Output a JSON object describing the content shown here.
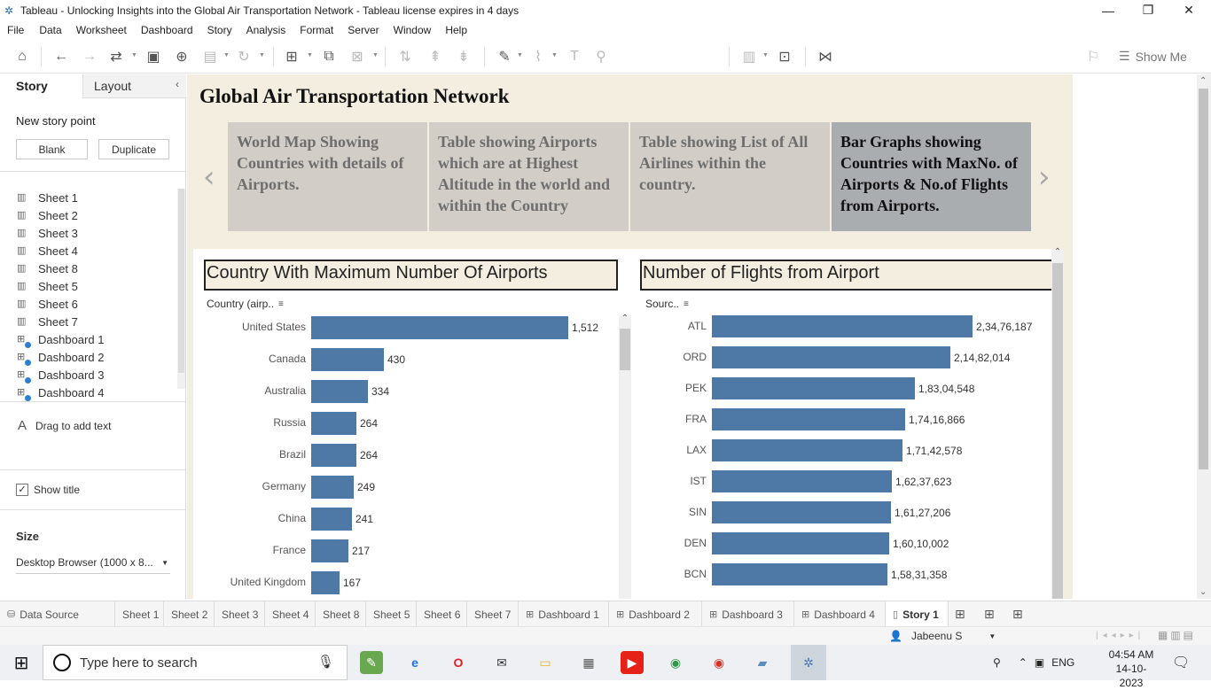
{
  "window": {
    "title": "Tableau - Unlocking Insights into the Global Air Transportation Network - Tableau license expires in 4 days"
  },
  "menu": [
    "File",
    "Data",
    "Worksheet",
    "Dashboard",
    "Story",
    "Analysis",
    "Format",
    "Server",
    "Window",
    "Help"
  ],
  "toolbar": {
    "show_me": "Show Me"
  },
  "left_pane": {
    "tabs": {
      "story": "Story",
      "layout": "Layout"
    },
    "new_story_point": "New story point",
    "blank": "Blank",
    "duplicate": "Duplicate",
    "sheets": [
      {
        "label": "Sheet 1",
        "kind": "sheet"
      },
      {
        "label": "Sheet 2",
        "kind": "sheet"
      },
      {
        "label": "Sheet 3",
        "kind": "sheet"
      },
      {
        "label": "Sheet 4",
        "kind": "sheet"
      },
      {
        "label": "Sheet 8",
        "kind": "sheet"
      },
      {
        "label": "Sheet 5",
        "kind": "sheet"
      },
      {
        "label": "Sheet 6",
        "kind": "sheet"
      },
      {
        "label": "Sheet 7",
        "kind": "sheet"
      },
      {
        "label": "Dashboard 1",
        "kind": "dashboard"
      },
      {
        "label": "Dashboard 2",
        "kind": "dashboard"
      },
      {
        "label": "Dashboard 3",
        "kind": "dashboard"
      },
      {
        "label": "Dashboard 4",
        "kind": "dashboard"
      }
    ],
    "drag_text": "Drag to add text",
    "show_title": "Show title",
    "size_label": "Size",
    "size_value": "Desktop Browser (1000 x 8..."
  },
  "story": {
    "title": "Global Air Transportation Network",
    "points": [
      {
        "text": "World Map Showing Countries with details of Airports.",
        "active": false
      },
      {
        "text": "Table showing Airports which are at Highest Altitude in the world and within the Country",
        "active": false
      },
      {
        "text": "Table showing List of All Airlines within the country.",
        "active": false
      },
      {
        "text": "Bar Graphs showing Countries with MaxNo. of Airports & No.of Flights from Airports.",
        "active": true
      }
    ]
  },
  "chart_data": [
    {
      "type": "bar",
      "orientation": "horizontal",
      "title": "Country With Maximum Number Of Airports",
      "header": "Country (airp..",
      "categories": [
        "United States",
        "Canada",
        "Australia",
        "Russia",
        "Brazil",
        "Germany",
        "China",
        "France",
        "United Kingdom"
      ],
      "values": [
        1512,
        430,
        334,
        264,
        264,
        249,
        241,
        217,
        167
      ],
      "value_labels": [
        "1,512",
        "430",
        "334",
        "264",
        "264",
        "249",
        "241",
        "217",
        "167"
      ],
      "bar_color": "#4e79a7"
    },
    {
      "type": "bar",
      "orientation": "horizontal",
      "title": "Number of Flights from Airport",
      "header": "Sourc..",
      "categories": [
        "ATL",
        "ORD",
        "PEK",
        "FRA",
        "LAX",
        "IST",
        "SIN",
        "DEN",
        "BCN"
      ],
      "values": [
        23476187,
        21482014,
        18304548,
        17416866,
        17142578,
        16237623,
        16127206,
        16010002,
        15831358
      ],
      "value_labels": [
        "2,34,76,187",
        "2,14,82,014",
        "1,83,04,548",
        "1,74,16,866",
        "1,71,42,578",
        "1,62,37,623",
        "1,61,27,206",
        "1,60,10,002",
        "1,58,31,358"
      ],
      "bar_color": "#4e79a7"
    }
  ],
  "bottom_tabs": [
    {
      "label": "Data Source",
      "icon": "database-icon"
    },
    {
      "label": "Sheet 1"
    },
    {
      "label": "Sheet 2"
    },
    {
      "label": "Sheet 3"
    },
    {
      "label": "Sheet 4"
    },
    {
      "label": "Sheet 8"
    },
    {
      "label": "Sheet 5"
    },
    {
      "label": "Sheet 6"
    },
    {
      "label": "Sheet 7"
    },
    {
      "label": "Dashboard 1",
      "icon": "dashboard-icon"
    },
    {
      "label": "Dashboard 2",
      "icon": "dashboard-icon"
    },
    {
      "label": "Dashboard 3",
      "icon": "dashboard-icon"
    },
    {
      "label": "Dashboard 4",
      "icon": "dashboard-icon"
    },
    {
      "label": "Story 1",
      "icon": "story-icon",
      "active": true
    }
  ],
  "status": {
    "user": "Jabeenu S"
  },
  "taskbar": {
    "search_placeholder": "Type here to search",
    "lang": "ENG",
    "time": "04:54 AM",
    "date": "14-10-2023"
  }
}
